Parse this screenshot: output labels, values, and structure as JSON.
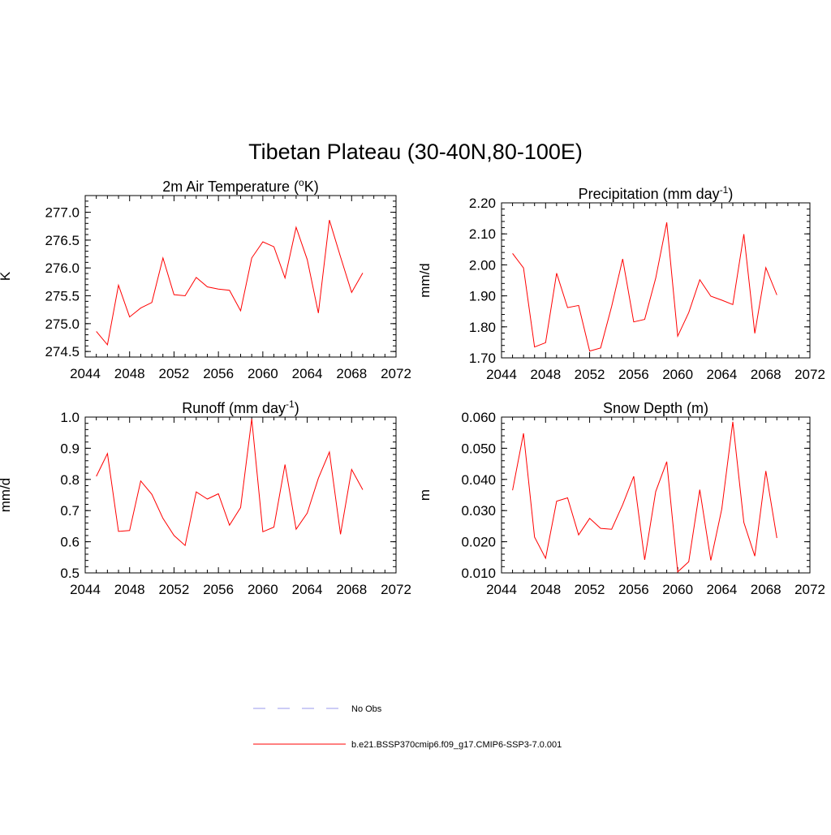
{
  "figure": {
    "title": "Tibetan Plateau (30-40N,80-100E)"
  },
  "colors": {
    "model_line": "#ff0000",
    "obs_line": "#9999ee",
    "axis": "#000000"
  },
  "legend": {
    "items": [
      {
        "label": "No Obs",
        "style": "dashed",
        "color": "#9999ee"
      },
      {
        "label": "b.e21.BSSP370cmip6.f09_g17.CMIP6-SSP3-7.0.001",
        "style": "solid",
        "color": "#ff0000"
      }
    ]
  },
  "chart_data": [
    {
      "type": "line",
      "title": "2m Air Temperature (",
      "title_sup": "o",
      "title_tail": "K)",
      "ylabel": "K",
      "xlim": [
        2044,
        2072
      ],
      "ylim": [
        274.4,
        277.3
      ],
      "xticks": [
        2044,
        2048,
        2052,
        2056,
        2060,
        2064,
        2068,
        2072
      ],
      "yticks": [
        274.5,
        275.0,
        275.5,
        276.0,
        276.5,
        277.0
      ],
      "ytick_labels": [
        "274.5",
        "275.0",
        "275.5",
        "276.0",
        "276.5",
        "277.0"
      ],
      "x": [
        2045,
        2046,
        2047,
        2048,
        2049,
        2050,
        2051,
        2052,
        2053,
        2054,
        2055,
        2056,
        2057,
        2058,
        2059,
        2060,
        2061,
        2062,
        2063,
        2064,
        2065,
        2066,
        2067,
        2068,
        2069
      ],
      "series": [
        {
          "name": "b.e21.BSSP370cmip6.f09_g17.CMIP6-SSP3-7.0.001",
          "values": [
            274.86,
            274.62,
            275.69,
            275.12,
            275.28,
            275.38,
            276.18,
            275.52,
            275.5,
            275.83,
            275.66,
            275.62,
            275.6,
            275.23,
            276.18,
            276.47,
            276.38,
            275.82,
            276.73,
            276.15,
            275.19,
            276.86,
            276.2,
            275.56,
            275.91
          ]
        }
      ]
    },
    {
      "type": "line",
      "title": "Precipitation (mm day",
      "title_sup": "-1",
      "title_tail": ")",
      "ylabel": "mm/d",
      "xlim": [
        2044,
        2072
      ],
      "ylim": [
        1.7,
        2.2
      ],
      "xticks": [
        2044,
        2048,
        2052,
        2056,
        2060,
        2064,
        2068,
        2072
      ],
      "yticks": [
        1.7,
        1.8,
        1.9,
        2.0,
        2.1,
        2.2
      ],
      "ytick_labels": [
        "1.70",
        "1.80",
        "1.90",
        "2.00",
        "2.10",
        "2.20"
      ],
      "x": [
        2045,
        2046,
        2047,
        2048,
        2049,
        2050,
        2051,
        2052,
        2053,
        2054,
        2055,
        2056,
        2057,
        2058,
        2059,
        2060,
        2061,
        2062,
        2063,
        2064,
        2065,
        2066,
        2067,
        2068,
        2069
      ],
      "series": [
        {
          "name": "b.e21.BSSP370cmip6.f09_g17.CMIP6-SSP3-7.0.001",
          "values": [
            2.037,
            1.99,
            1.735,
            1.749,
            1.973,
            1.862,
            1.869,
            1.722,
            1.732,
            1.866,
            2.019,
            1.816,
            1.824,
            1.957,
            2.137,
            1.77,
            1.846,
            1.952,
            1.899,
            1.886,
            1.872,
            2.099,
            1.779,
            1.991,
            1.903
          ]
        }
      ]
    },
    {
      "type": "line",
      "title": "Runoff (mm day",
      "title_sup": "-1",
      "title_tail": ")",
      "ylabel": "mm/d",
      "xlim": [
        2044,
        2072
      ],
      "ylim": [
        0.5,
        1.0
      ],
      "xticks": [
        2044,
        2048,
        2052,
        2056,
        2060,
        2064,
        2068,
        2072
      ],
      "yticks": [
        0.5,
        0.6,
        0.7,
        0.8,
        0.9,
        1.0
      ],
      "ytick_labels": [
        "0.5",
        "0.6",
        "0.7",
        "0.8",
        "0.9",
        "1.0"
      ],
      "x": [
        2045,
        2046,
        2047,
        2048,
        2049,
        2050,
        2051,
        2052,
        2053,
        2054,
        2055,
        2056,
        2057,
        2058,
        2059,
        2060,
        2061,
        2062,
        2063,
        2064,
        2065,
        2066,
        2067,
        2068,
        2069
      ],
      "series": [
        {
          "name": "b.e21.BSSP370cmip6.f09_g17.CMIP6-SSP3-7.0.001",
          "values": [
            0.81,
            0.883,
            0.633,
            0.636,
            0.795,
            0.752,
            0.675,
            0.62,
            0.588,
            0.76,
            0.737,
            0.754,
            0.653,
            0.71,
            0.994,
            0.632,
            0.647,
            0.848,
            0.64,
            0.692,
            0.804,
            0.888,
            0.624,
            0.832,
            0.767
          ]
        }
      ]
    },
    {
      "type": "line",
      "title": "Snow Depth (m)",
      "title_sup": "",
      "title_tail": "",
      "ylabel": "m",
      "xlim": [
        2044,
        2072
      ],
      "ylim": [
        0.01,
        0.06
      ],
      "xticks": [
        2044,
        2048,
        2052,
        2056,
        2060,
        2064,
        2068,
        2072
      ],
      "yticks": [
        0.01,
        0.02,
        0.03,
        0.04,
        0.05,
        0.06
      ],
      "ytick_labels": [
        "0.010",
        "0.020",
        "0.030",
        "0.040",
        "0.050",
        "0.060"
      ],
      "x": [
        2045,
        2046,
        2047,
        2048,
        2049,
        2050,
        2051,
        2052,
        2053,
        2054,
        2055,
        2056,
        2057,
        2058,
        2059,
        2060,
        2061,
        2062,
        2063,
        2064,
        2065,
        2066,
        2067,
        2068,
        2069
      ],
      "series": [
        {
          "name": "b.e21.BSSP370cmip6.f09_g17.CMIP6-SSP3-7.0.001",
          "values": [
            0.0365,
            0.0548,
            0.0215,
            0.0147,
            0.033,
            0.0341,
            0.0222,
            0.0275,
            0.0243,
            0.024,
            0.0319,
            0.041,
            0.0142,
            0.0361,
            0.0457,
            0.0103,
            0.0136,
            0.0367,
            0.014,
            0.0305,
            0.0585,
            0.0262,
            0.0154,
            0.0427,
            0.0212
          ]
        }
      ]
    }
  ]
}
